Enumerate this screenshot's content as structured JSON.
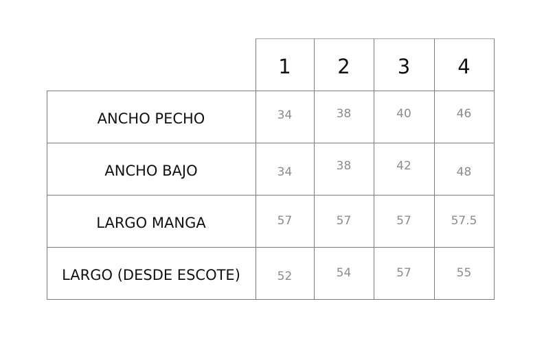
{
  "table": {
    "columns": [
      "1",
      "2",
      "3",
      "4"
    ],
    "rows": [
      {
        "label": "ANCHO PECHO",
        "values": [
          "34",
          "38",
          "40",
          "46"
        ]
      },
      {
        "label": "ANCHO BAJO",
        "values": [
          "34",
          "38",
          "42",
          "48"
        ]
      },
      {
        "label": "LARGO MANGA",
        "values": [
          "57",
          "57",
          "57",
          "57.5"
        ]
      },
      {
        "label": "LARGO (DESDE ESCOTE)",
        "values": [
          "52",
          "54",
          "57",
          "55"
        ]
      }
    ]
  }
}
